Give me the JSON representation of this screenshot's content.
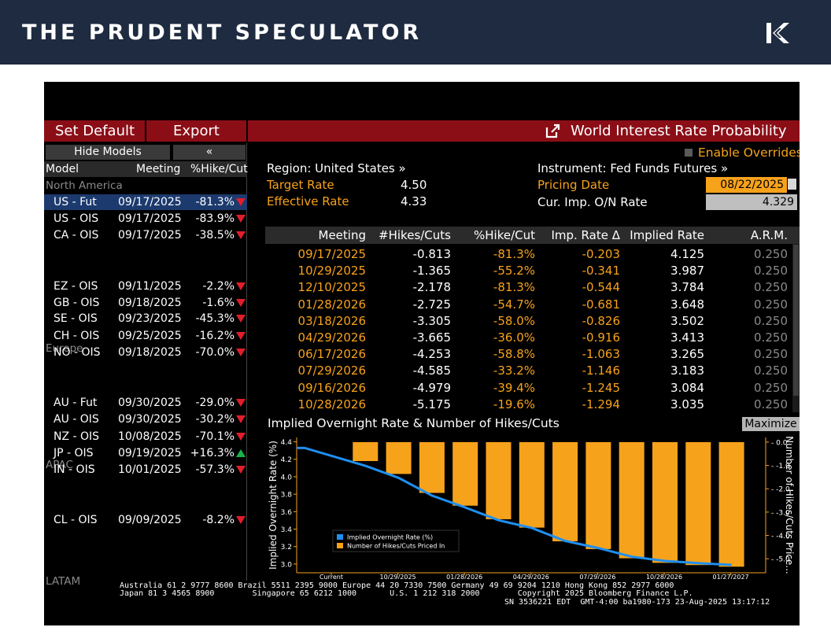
{
  "brand": "THE PRUDENT SPECULATOR",
  "toolbar": {
    "set_default": "Set Default",
    "export": "Export",
    "title": "World Interest Rate Probability",
    "enable_overrides": "Enable Overrides"
  },
  "left": {
    "hide_models": "Hide Models",
    "collapse": "«",
    "headers": {
      "model": "Model",
      "meeting": "Meeting",
      "hike_cut": "%Hike/Cut"
    },
    "regions": {
      "na": "North America",
      "eu": "Europe",
      "apac": "APAC",
      "latam": "LATAM"
    },
    "rows": [
      {
        "model": "US - Fut",
        "meeting": "09/17/2025",
        "pct": "-81.3%",
        "dir": "down"
      },
      {
        "model": "US - OIS",
        "meeting": "09/17/2025",
        "pct": "-83.9%",
        "dir": "down"
      },
      {
        "model": "CA - OIS",
        "meeting": "09/17/2025",
        "pct": "-38.5%",
        "dir": "down"
      },
      {
        "model": "EZ - OIS",
        "meeting": "09/11/2025",
        "pct": "-2.2%",
        "dir": "down"
      },
      {
        "model": "GB - OIS",
        "meeting": "09/18/2025",
        "pct": "-1.6%",
        "dir": "down"
      },
      {
        "model": "SE - OIS",
        "meeting": "09/23/2025",
        "pct": "-45.3%",
        "dir": "down"
      },
      {
        "model": "CH - OIS",
        "meeting": "09/25/2025",
        "pct": "-16.2%",
        "dir": "down"
      },
      {
        "model": "NO - OIS",
        "meeting": "09/18/2025",
        "pct": "-70.0%",
        "dir": "down"
      },
      {
        "model": "AU - Fut",
        "meeting": "09/30/2025",
        "pct": "-29.0%",
        "dir": "down"
      },
      {
        "model": "AU - OIS",
        "meeting": "09/30/2025",
        "pct": "-30.2%",
        "dir": "down"
      },
      {
        "model": "NZ - OIS",
        "meeting": "10/08/2025",
        "pct": "-70.1%",
        "dir": "down"
      },
      {
        "model": "JP - OIS",
        "meeting": "09/19/2025",
        "pct": "+16.3%",
        "dir": "up"
      },
      {
        "model": "IN - OIS",
        "meeting": "10/01/2025",
        "pct": "-57.3%",
        "dir": "down"
      },
      {
        "model": "CL - OIS",
        "meeting": "09/09/2025",
        "pct": "-8.2%",
        "dir": "down"
      }
    ]
  },
  "info": {
    "region_label": "Region: United States »",
    "instrument_label": "Instrument: Fed Funds Futures »",
    "target_rate_label": "Target Rate",
    "target_rate_value": "4.50",
    "effective_rate_label": "Effective Rate",
    "effective_rate_value": "4.33",
    "pricing_date_label": "Pricing Date",
    "pricing_date_value": "08/22/2025",
    "cur_imp_label": "Cur. Imp. O/N Rate",
    "cur_imp_value": "4.329"
  },
  "table": {
    "headers": [
      "Meeting",
      "#Hikes/Cuts",
      "%Hike/Cut",
      "Imp. Rate Δ",
      "Implied Rate",
      "A.R.M."
    ],
    "rows": [
      [
        "09/17/2025",
        "-0.813",
        "-81.3%",
        "-0.203",
        "4.125",
        "0.250"
      ],
      [
        "10/29/2025",
        "-1.365",
        "-55.2%",
        "-0.341",
        "3.987",
        "0.250"
      ],
      [
        "12/10/2025",
        "-2.178",
        "-81.3%",
        "-0.544",
        "3.784",
        "0.250"
      ],
      [
        "01/28/2026",
        "-2.725",
        "-54.7%",
        "-0.681",
        "3.648",
        "0.250"
      ],
      [
        "03/18/2026",
        "-3.305",
        "-58.0%",
        "-0.826",
        "3.502",
        "0.250"
      ],
      [
        "04/29/2026",
        "-3.665",
        "-36.0%",
        "-0.916",
        "3.413",
        "0.250"
      ],
      [
        "06/17/2026",
        "-4.253",
        "-58.8%",
        "-1.063",
        "3.265",
        "0.250"
      ],
      [
        "07/29/2026",
        "-4.585",
        "-33.2%",
        "-1.146",
        "3.183",
        "0.250"
      ],
      [
        "09/16/2026",
        "-4.979",
        "-39.4%",
        "-1.245",
        "3.084",
        "0.250"
      ],
      [
        "10/28/2026",
        "-5.175",
        "-19.6%",
        "-1.294",
        "3.035",
        "0.250"
      ]
    ]
  },
  "chart": {
    "title": "Implied Overnight Rate & Number of Hikes/Cuts",
    "maximize": "Maximize"
  },
  "chart_data": {
    "type": "bar",
    "title": "Implied Overnight Rate & Number of Hikes/Cuts",
    "ylabel": "Implied Overnight Rate (%)",
    "y2label": "Number of Hikes/Cuts Price...",
    "ylim": [
      2.9,
      4.45
    ],
    "y2lim": [
      -5.6,
      0.2
    ],
    "y_ticks": [
      "4.4",
      "4.2",
      "4.0",
      "3.8",
      "3.6",
      "3.4",
      "3.2",
      "3.0"
    ],
    "y2_ticks": [
      "0.0",
      "-1.0",
      "-2.0",
      "-3.0",
      "-4.0",
      "-5.0"
    ],
    "x_ticks": [
      "Current",
      "10/29/2025",
      "01/28/2026",
      "04/29/2026",
      "07/29/2026",
      "10/28/2026",
      "01/27/2027"
    ],
    "legend_position": "bottom-left",
    "series": [
      {
        "name": "Implied Overnight Rate (%)",
        "color": "#1f8ff0",
        "values": [
          4.33,
          4.125,
          3.987,
          3.784,
          3.648,
          3.502,
          3.413,
          3.265,
          3.183,
          3.084,
          3.035,
          3.01,
          2.99
        ]
      },
      {
        "name": "Number of Hikes/Cuts Priced In",
        "color": "#f7a21b",
        "values": [
          0,
          -0.813,
          -1.365,
          -2.178,
          -2.725,
          -3.305,
          -3.665,
          -4.253,
          -4.585,
          -4.979,
          -5.175,
          -5.27,
          -5.34
        ]
      }
    ]
  },
  "footer": {
    "line1": "Australia 61 2 9777 8600 Brazil 5511 2395 9000 Europe 44 20 7330 7500 Germany 49 69 9204 1210 Hong Kong 852 2977 6000",
    "line2": "Japan 81 3 4565 8900        Singapore 65 6212 1000       U.S. 1 212 318 2000        Copyright 2025 Bloomberg Finance L.P.",
    "line3": "SN 3536221 EDT  GMT-4:00 ba1980-173 23-Aug-2025 13:17:12"
  }
}
